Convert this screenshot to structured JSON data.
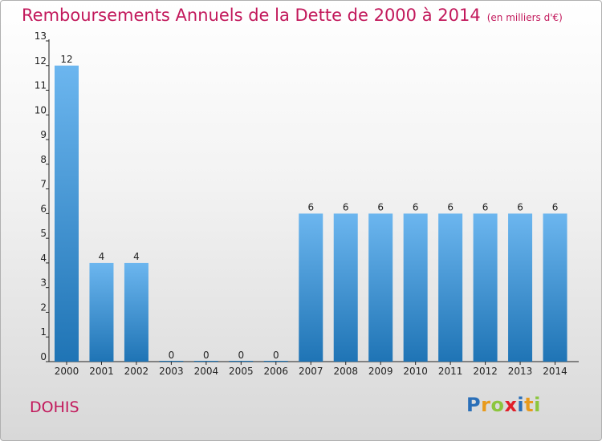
{
  "title": "Remboursements Annuels de la Dette de 2000 à 2014",
  "unit": "(en milliers d'€)",
  "town": "DOHIS",
  "logo": "Proxiti",
  "colors": {
    "title": "#c2185b",
    "bar_top": "#6cb6ef",
    "bar_bottom": "#1f74b5"
  },
  "chart_data": {
    "type": "bar",
    "categories": [
      "2000",
      "2001",
      "2002",
      "2003",
      "2004",
      "2005",
      "2006",
      "2007",
      "2008",
      "2009",
      "2010",
      "2011",
      "2012",
      "2013",
      "2014"
    ],
    "values": [
      12,
      4,
      4,
      0,
      0,
      0,
      0,
      6,
      6,
      6,
      6,
      6,
      6,
      6,
      6
    ],
    "title": "Remboursements Annuels de la Dette de 2000 à 2014",
    "xlabel": "",
    "ylabel": "",
    "ylim": [
      0,
      13
    ],
    "yticks": [
      0,
      1,
      2,
      3,
      4,
      5,
      6,
      7,
      8,
      9,
      10,
      11,
      12,
      13
    ],
    "grid": false,
    "data_labels": true
  }
}
